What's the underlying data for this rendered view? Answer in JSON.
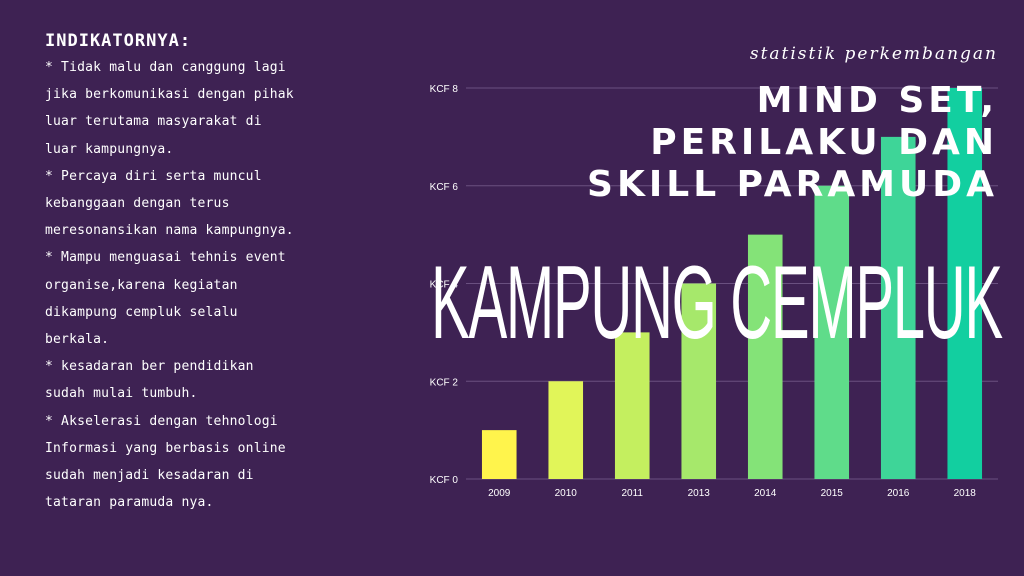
{
  "indicators": {
    "heading": "INDIKATORNYA:",
    "items": [
      "* Tidak malu dan canggung lagi jika berkomunikasi dengan pihak luar terutama masyarakat di luar kampungnya.",
      "* Percaya diri serta muncul kebanggaan dengan terus meresonansikan nama kampungnya.",
      "* Mampu menguasai tehnis event organise,karena kegiatan dikampung cempluk selalu berkala.",
      "* kesadaran ber pendidikan sudah mulai tumbuh.",
      "* Akselerasi dengan tehnologi Informasi yang berbasis online sudah menjadi kesadaran di tataran paramuda nya."
    ]
  },
  "headline": {
    "subtitle": "statistik perkembangan",
    "lines": [
      "MIND SET,",
      "PERILAKU DAN",
      "SKILL PARAMUDA"
    ],
    "big": "KAMPUNG CEMPLUK"
  },
  "chart_data": {
    "type": "bar",
    "categories": [
      "2009",
      "2010",
      "2011",
      "2013",
      "2014",
      "2015",
      "2016",
      "2018"
    ],
    "values": [
      1,
      2,
      3,
      4,
      5,
      6,
      7,
      8
    ],
    "yticks": [
      "KCF 0",
      "KCF 2",
      "KCF 4",
      "KCF 6",
      "KCF 8"
    ],
    "ylim": [
      0,
      8
    ],
    "grid": true,
    "colors": [
      "#fff44c",
      "#e1f559",
      "#c4ef5f",
      "#a6e86b",
      "#84e378",
      "#5fdc8a",
      "#3ed598",
      "#12cfa0"
    ],
    "axis_text_color": "#ffffff",
    "grid_color": "#6a5080"
  }
}
